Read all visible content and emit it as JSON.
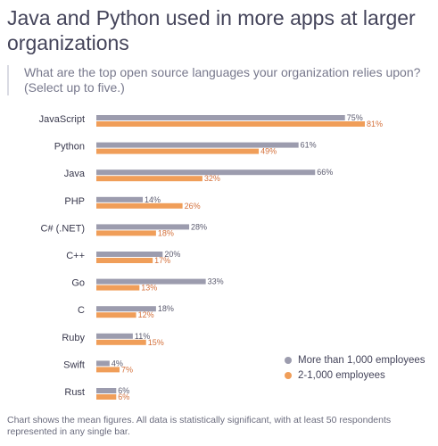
{
  "header": {
    "title": "Java and Python used in more apps at larger organizations",
    "subtitle": "What are the top open source languages your organization relies upon? (Select up to five.)"
  },
  "footnote": "Chart shows the mean figures. All data is statistically significant, with at least 50 respondents represented in any single bar.",
  "colors": {
    "large": "#9c9cae",
    "small": "#f09e59",
    "small_text": "#d4703a",
    "large_text": "#5a5a6e"
  },
  "chart_data": {
    "type": "bar",
    "orientation": "horizontal",
    "value_suffix": "%",
    "categories": [
      "JavaScript",
      "Python",
      "Java",
      "PHP",
      "C# (.NET)",
      "C++",
      "Go",
      "C",
      "Ruby",
      "Swift",
      "Rust"
    ],
    "series": [
      {
        "name": "More than 1,000 employees",
        "values": [
          75,
          61,
          66,
          14,
          28,
          20,
          33,
          18,
          11,
          4,
          6
        ]
      },
      {
        "name": "2-1,000 employees",
        "values": [
          81,
          49,
          32,
          26,
          18,
          17,
          13,
          12,
          15,
          7,
          6
        ]
      }
    ],
    "xlim": [
      0,
      81
    ],
    "legend_position": "bottom-right",
    "grid": false
  }
}
